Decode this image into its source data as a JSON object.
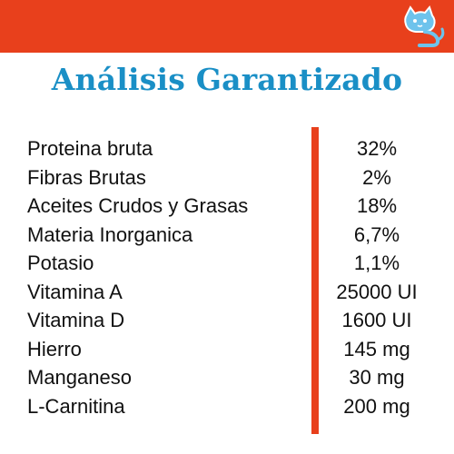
{
  "header": {
    "bar_color": "#e8401c",
    "logo_icon": "cat-icon"
  },
  "title": "Análisis Garantizado",
  "table": {
    "rows": [
      {
        "label": "Proteina bruta",
        "value": "32%"
      },
      {
        "label": "Fibras Brutas",
        "value": "2%"
      },
      {
        "label": "Aceites Crudos y Grasas",
        "value": "18%"
      },
      {
        "label": "Materia Inorganica",
        "value": "6,7%"
      },
      {
        "label": "Potasio",
        "value": "1,1%"
      },
      {
        "label": "Vitamina A",
        "value": "25000 UI"
      },
      {
        "label": "Vitamina D",
        "value": "1600 UI"
      },
      {
        "label": "Hierro",
        "value": "145 mg"
      },
      {
        "label": "Manganeso",
        "value": "30 mg"
      },
      {
        "label": "L-Carnitina",
        "value": "200 mg"
      }
    ]
  },
  "colors": {
    "accent": "#e8401c",
    "title": "#1a8fc6"
  }
}
